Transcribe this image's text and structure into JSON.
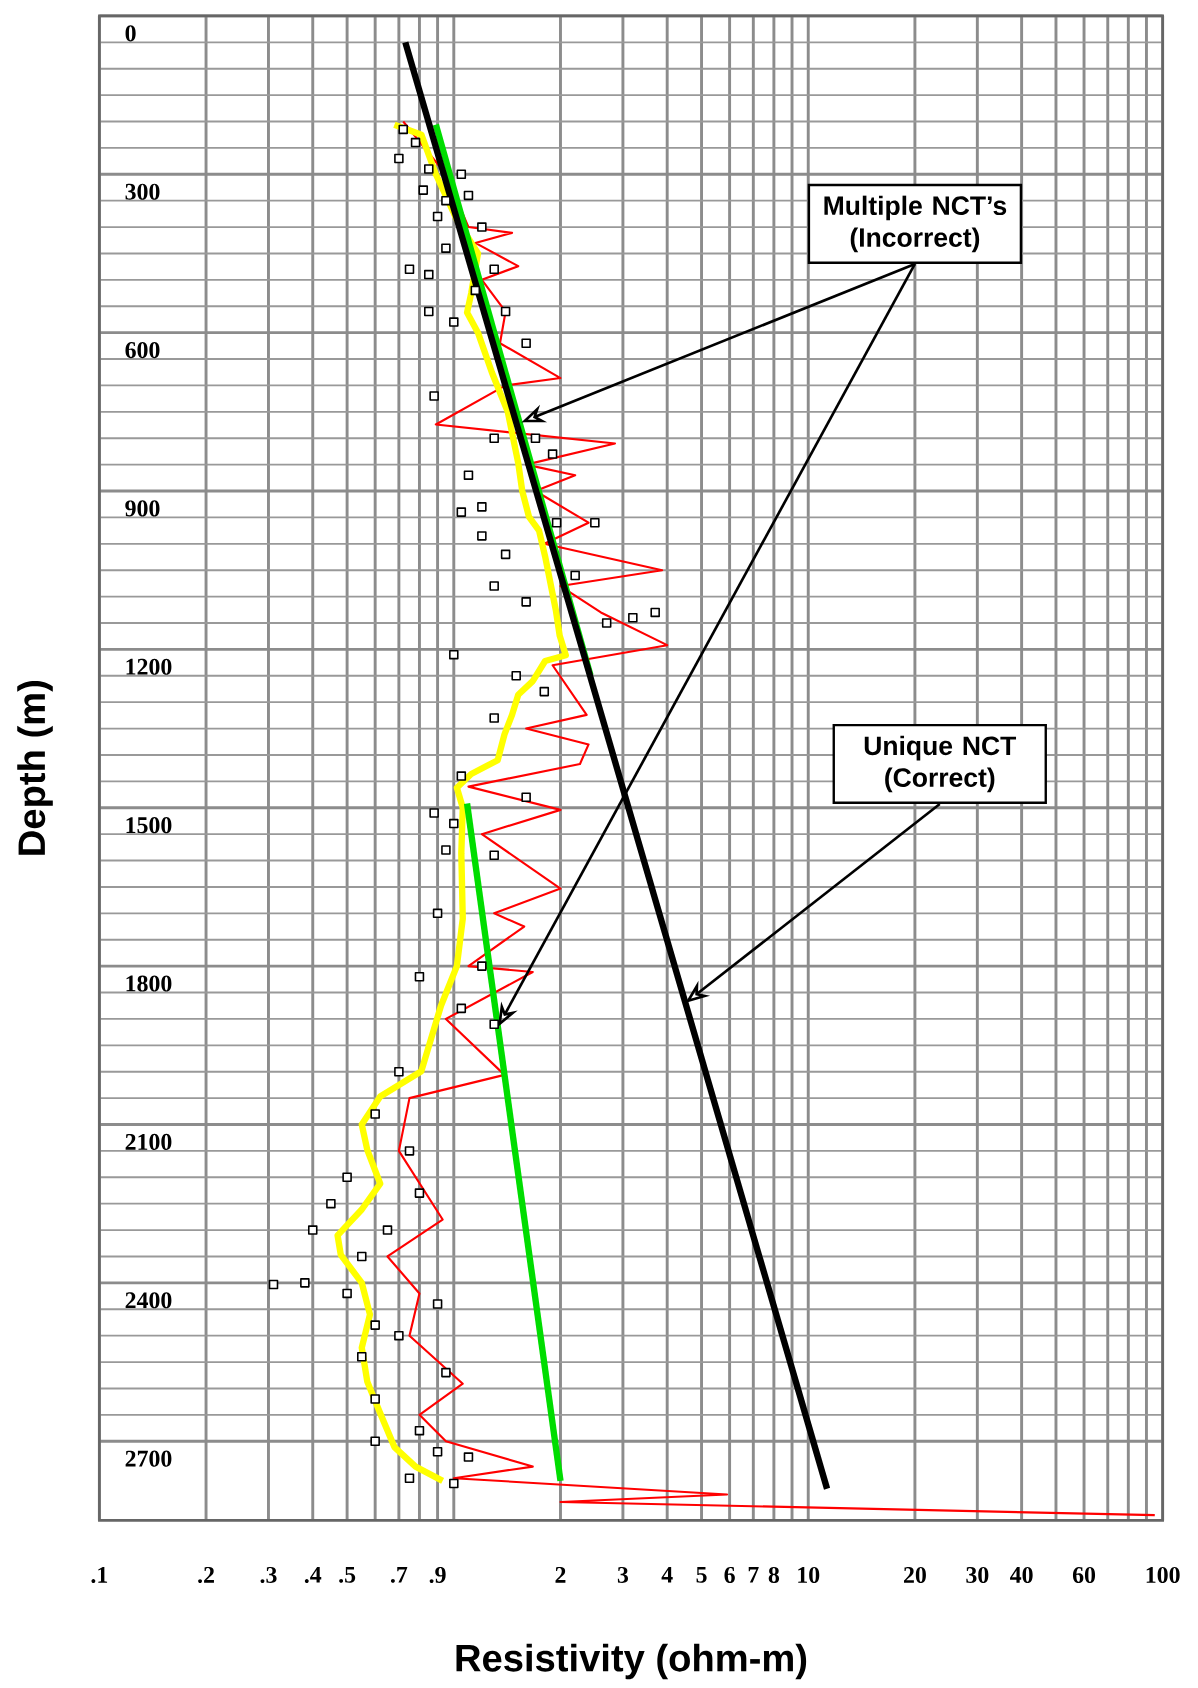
{
  "chart_data": {
    "type": "line",
    "xlabel": "Resistivity (ohm-m)",
    "ylabel": "Depth (m)",
    "log": "x",
    "xlim": [
      0.1,
      100
    ],
    "ylim": [
      2850,
      0
    ],
    "grid": true,
    "xticks": [
      {
        "value": 0.1,
        "label": ".1"
      },
      {
        "value": 0.2,
        "label": ".2"
      },
      {
        "value": 0.3,
        "label": ".3"
      },
      {
        "value": 0.4,
        "label": ".4"
      },
      {
        "value": 0.5,
        "label": ".5"
      },
      {
        "value": 0.6,
        "label": null
      },
      {
        "value": 0.7,
        "label": ".7"
      },
      {
        "value": 0.8,
        "label": null
      },
      {
        "value": 0.9,
        "label": ".9"
      },
      {
        "value": 1,
        "label": null
      },
      2,
      3,
      4,
      5,
      6,
      7,
      8,
      {
        "value": 9,
        "label": null
      },
      10,
      20,
      30,
      40,
      {
        "value": 50,
        "label": null
      },
      60,
      {
        "value": 70,
        "label": null
      },
      {
        "value": 80,
        "label": null
      },
      {
        "value": 90,
        "label": null
      },
      100
    ],
    "yticks": [
      0,
      300,
      600,
      900,
      1200,
      1500,
      1800,
      2100,
      2400,
      2700
    ],
    "annotations": [
      {
        "text": "Multiple NCT’s (Incorrect)",
        "x": 1.55,
        "y": 770
      },
      {
        "text": "Unique NCT (Correct)",
        "x": 4.5,
        "y": 1870
      }
    ],
    "series": [
      {
        "type": "line",
        "color": "#ff0000",
        "marker": "none",
        "x": [
          0.72,
          0.95,
          1.1,
          1.46,
          1.15,
          1.52,
          1.2,
          1.4,
          1.35,
          2.0,
          1.4,
          0.89,
          2.85,
          1.6,
          2.2,
          1.7,
          2.4,
          1.8,
          3.87,
          2.0,
          2.6,
          4.0,
          1.9,
          2.37,
          1.6,
          2.4,
          2.27,
          1.1,
          2.0,
          1.2,
          2.0,
          1.3,
          1.58,
          1.1,
          1.67,
          0.95,
          1.39,
          0.75,
          0.7,
          0.93,
          0.65,
          0.8,
          0.75,
          1.06,
          0.8,
          0.95,
          1.67,
          1.0,
          5.9,
          2.0,
          95
        ],
        "values": [
          200,
          300,
          400,
          411,
          430,
          474,
          500,
          560,
          620,
          686,
          700,
          774,
          810,
          850,
          870,
          900,
          960,
          1000,
          1050,
          1080,
          1130,
          1192,
          1230,
          1324,
          1350,
          1380,
          1417,
          1460,
          1504,
          1550,
          1653,
          1700,
          1725,
          1800,
          1811,
          1900,
          2006,
          2050,
          2150,
          2280,
          2350,
          2420,
          2500,
          2591,
          2650,
          2700,
          2748,
          2770,
          2801,
          2815,
          2840
        ]
      },
      {
        "type": "scatter",
        "color": "#000000",
        "marker": "square",
        "x": [
          0.72,
          0.78,
          0.7,
          0.85,
          0.82,
          0.95,
          1.05,
          1.1,
          0.9,
          1.2,
          0.95,
          1.3,
          0.75,
          0.85,
          1.15,
          0.85,
          1.0,
          1.4,
          1.6,
          0.88,
          1.7,
          1.3,
          1.9,
          1.1,
          1.2,
          1.05,
          1.95,
          2.5,
          1.2,
          1.4,
          2.2,
          1.3,
          1.6,
          3.2,
          3.7,
          2.7,
          1.0,
          1.5,
          1.8,
          1.3,
          1.05,
          1.6,
          0.88,
          1.0,
          0.95,
          1.3,
          0.9,
          1.2,
          0.8,
          1.05,
          1.3,
          0.7,
          0.6,
          0.75,
          0.5,
          0.8,
          0.45,
          0.4,
          0.65,
          0.55,
          0.38,
          0.31,
          0.5,
          0.9,
          0.6,
          0.7,
          0.55,
          0.95,
          0.6,
          0.8,
          0.6,
          0.9,
          1.1,
          0.75,
          1.0
        ],
        "values": [
          215,
          240,
          270,
          290,
          330,
          350,
          300,
          340,
          380,
          400,
          440,
          480,
          480,
          490,
          520,
          560,
          580,
          560,
          620,
          720,
          800,
          800,
          830,
          870,
          930,
          940,
          960,
          960,
          985,
          1020,
          1060,
          1080,
          1110,
          1140,
          1130,
          1150,
          1210,
          1250,
          1280,
          1330,
          1440,
          1480,
          1510,
          1530,
          1580,
          1590,
          1700,
          1800,
          1820,
          1880,
          1910,
          2000,
          2080,
          2150,
          2200,
          2230,
          2250,
          2300,
          2300,
          2350,
          2400,
          2403,
          2420,
          2440,
          2480,
          2500,
          2540,
          2570,
          2620,
          2680,
          2700,
          2720,
          2730,
          2770,
          2780
        ]
      },
      {
        "type": "line",
        "color": "#ffff00",
        "marker": "none",
        "x": [
          0.68,
          0.81,
          0.89,
          1.02,
          1.17,
          1.12,
          1.09,
          1.17,
          1.28,
          1.42,
          1.52,
          1.56,
          1.63,
          1.74,
          1.81,
          1.94,
          1.99,
          2.07,
          1.81,
          1.67,
          1.52,
          1.46,
          1.39,
          1.33,
          1.12,
          1.02,
          1.06,
          1.05,
          1.06,
          1.02,
          0.92,
          0.81,
          0.62,
          0.55,
          0.57,
          0.62,
          0.55,
          0.47,
          0.48,
          0.55,
          0.58,
          0.55,
          0.57,
          0.62,
          0.68,
          0.78,
          0.93
        ],
        "values": [
          206,
          225,
          300,
          386,
          450,
          525,
          562,
          600,
          675,
          750,
          847,
          900,
          949,
          975,
          1024,
          1125,
          1174,
          1211,
          1222,
          1260,
          1286,
          1324,
          1361,
          1410,
          1436,
          1462,
          1500,
          1586,
          1710,
          1800,
          1875,
          1999,
          2047,
          2100,
          2148,
          2212,
          2261,
          2310,
          2347,
          2400,
          2460,
          2523,
          2587,
          2647,
          2711,
          2748,
          2775
        ]
      },
      {
        "type": "line",
        "color": "#00dd00",
        "marker": "none",
        "x": [
          0.89,
          2.43
        ],
        "values": [
          206,
          1249
        ]
      },
      {
        "type": "line",
        "color": "#00dd00",
        "marker": "none",
        "x": [
          1.09,
          2.0
        ],
        "values": [
          1492,
          2775
        ]
      },
      {
        "type": "line",
        "color": "#000000",
        "marker": "none",
        "x": [
          0.73,
          11.3
        ],
        "values": [
          50,
          2790
        ]
      }
    ]
  }
}
